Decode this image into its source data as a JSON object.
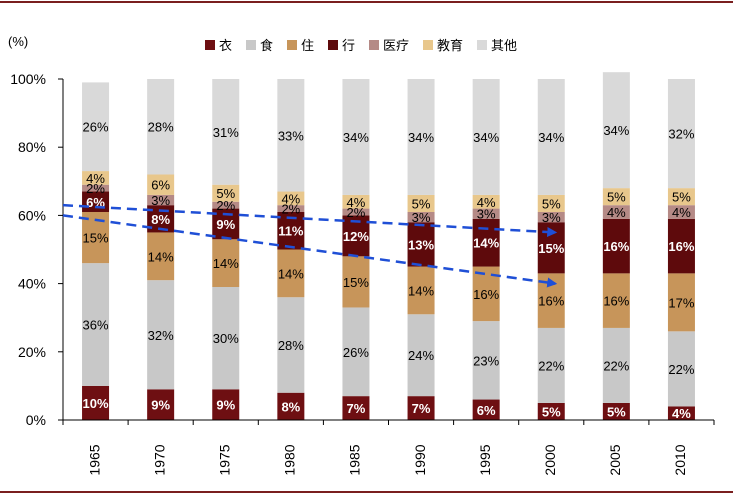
{
  "chart_data": {
    "type": "bar",
    "stacked": true,
    "unit_label": "(%)",
    "categories": [
      "1965",
      "1970",
      "1975",
      "1980",
      "1985",
      "1990",
      "1995",
      "2000",
      "2005",
      "2010"
    ],
    "series": [
      {
        "name": "衣",
        "color": "#6e0f12",
        "values": [
          10,
          9,
          9,
          8,
          7,
          7,
          6,
          5,
          5,
          4
        ],
        "labels": [
          "10%",
          "9%",
          "9%",
          "8%",
          "7%",
          "7%",
          "6%",
          "5%",
          "5%",
          "4%"
        ]
      },
      {
        "name": "食",
        "color": "#c8c8c8",
        "values": [
          36,
          32,
          30,
          28,
          26,
          24,
          23,
          22,
          22,
          22
        ],
        "labels": [
          "36%",
          "32%",
          "30%",
          "28%",
          "26%",
          "24%",
          "23%",
          "22%",
          "22%",
          "22%"
        ]
      },
      {
        "name": "住",
        "color": "#c7955a",
        "values": [
          15,
          14,
          14,
          14,
          15,
          14,
          16,
          16,
          16,
          17
        ],
        "labels": [
          "15%",
          "14%",
          "14%",
          "14%",
          "15%",
          "14%",
          "16%",
          "16%",
          "16%",
          "17%"
        ]
      },
      {
        "name": "行",
        "color": "#5e0a0c",
        "values": [
          6,
          8,
          9,
          11,
          12,
          13,
          14,
          15,
          16,
          16
        ],
        "labels": [
          "6%",
          "8%",
          "9%",
          "11%",
          "12%",
          "13%",
          "14%",
          "15%",
          "16%",
          "16%"
        ]
      },
      {
        "name": "医疗",
        "color": "#b58a86",
        "values": [
          2,
          3,
          2,
          2,
          2,
          3,
          3,
          3,
          4,
          4
        ],
        "labels": [
          "2%",
          "3%",
          "2%",
          "2%",
          "2%",
          "3%",
          "3%",
          "3%",
          "4%",
          "4%"
        ]
      },
      {
        "name": "教育",
        "color": "#e8c78c",
        "values": [
          4,
          6,
          5,
          4,
          4,
          5,
          4,
          5,
          5,
          5
        ],
        "labels": [
          "4%",
          "6%",
          "5%",
          "4%",
          "4%",
          "5%",
          "4%",
          "5%",
          "5%",
          "5%"
        ]
      },
      {
        "name": "其他",
        "color": "#d9d9d9",
        "values": [
          26,
          28,
          31,
          33,
          34,
          34,
          34,
          34,
          34,
          32
        ],
        "labels": [
          "26%",
          "28%",
          "31%",
          "33%",
          "34%",
          "34%",
          "34%",
          "34%",
          "34%",
          "32%"
        ]
      }
    ],
    "ylim": [
      0,
      100
    ],
    "yticks": [
      "0%",
      "20%",
      "40%",
      "60%",
      "80%",
      "100%"
    ],
    "legend_position": "top",
    "grid": false,
    "trend_arrows": [
      {
        "from_year": "1965",
        "from_value": 63,
        "to_year": "2000",
        "to_value": 55
      },
      {
        "from_year": "1965",
        "from_value": 60,
        "to_year": "2000",
        "to_value": 40
      }
    ]
  }
}
